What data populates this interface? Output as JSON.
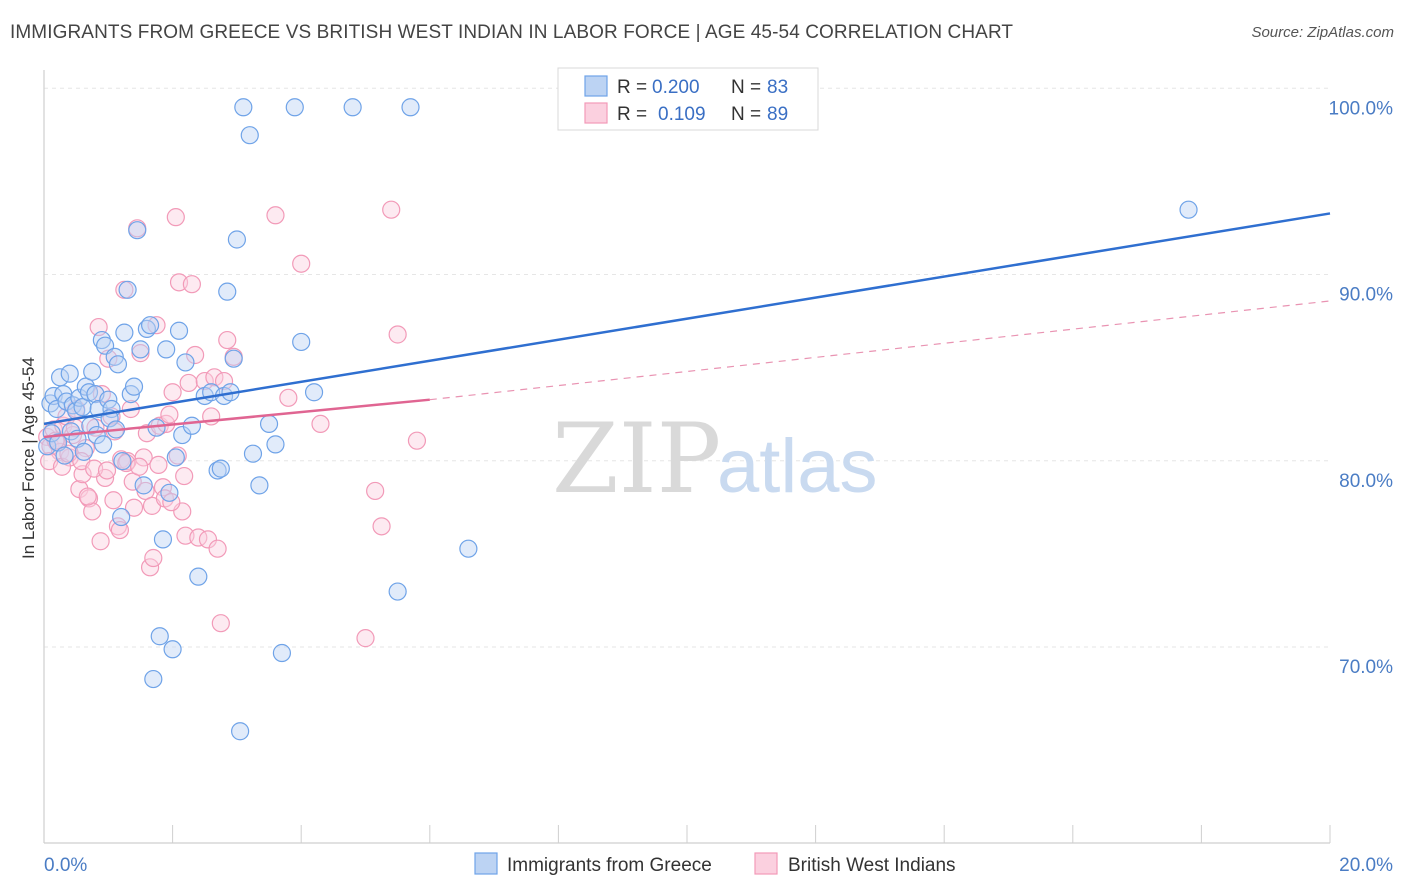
{
  "title": "IMMIGRANTS FROM GREECE VS BRITISH WEST INDIAN IN LABOR FORCE | AGE 45-54 CORRELATION CHART",
  "source": "Source: ZipAtlas.com",
  "watermark": {
    "zip": "ZIP",
    "atlas": "atlas"
  },
  "colors": {
    "blue": "#6fa3e8",
    "blue_line": "#2f6fd0",
    "pink": "#f29ab8",
    "pink_line": "#e06592"
  },
  "legend": {
    "rows": [
      {
        "r_label": "R =",
        "r_value": "0.200",
        "n_label": "N =",
        "n_value": "83"
      },
      {
        "r_label": "R =",
        "r_value": "0.109",
        "n_label": "N =",
        "n_value": "89"
      }
    ]
  },
  "chart_data": {
    "type": "scatter",
    "xlabel": "",
    "ylabel": "In Labor Force | Age 45-54",
    "xlim": [
      0,
      20
    ],
    "ylim": [
      60.5,
      102
    ],
    "x_tick_labels": [
      {
        "x": 0,
        "label": "0.0%"
      },
      {
        "x": 20,
        "label": "20.0%"
      }
    ],
    "y_tick_labels": [
      {
        "y": 100,
        "label": "100.0%"
      },
      {
        "y": 90,
        "label": "90.0%"
      },
      {
        "y": 80,
        "label": "80.0%"
      },
      {
        "y": 70,
        "label": "70.0%"
      }
    ],
    "grid": true,
    "legend_position": "top-center",
    "series": [
      {
        "name": "Immigrants from Greece",
        "color": "#6fa3e8",
        "trend": {
          "x": [
            0,
            20
          ],
          "y": [
            83.0,
            94.3
          ],
          "style": "solid"
        },
        "points": [
          [
            0.1,
            84.1
          ],
          [
            0.15,
            84.5
          ],
          [
            0.2,
            83.8
          ],
          [
            0.25,
            85.5
          ],
          [
            0.3,
            84.6
          ],
          [
            0.35,
            84.2
          ],
          [
            0.4,
            85.7
          ],
          [
            0.45,
            84.0
          ],
          [
            0.5,
            83.7
          ],
          [
            0.55,
            84.4
          ],
          [
            0.6,
            83.9
          ],
          [
            0.65,
            85.0
          ],
          [
            0.7,
            84.7
          ],
          [
            0.75,
            85.8
          ],
          [
            0.8,
            84.6
          ],
          [
            0.85,
            83.8
          ],
          [
            0.9,
            87.5
          ],
          [
            0.95,
            87.2
          ],
          [
            1.0,
            84.3
          ],
          [
            1.05,
            83.8
          ],
          [
            1.1,
            86.6
          ],
          [
            1.15,
            86.2
          ],
          [
            1.2,
            78.0
          ],
          [
            1.25,
            87.9
          ],
          [
            1.3,
            90.2
          ],
          [
            1.35,
            84.6
          ],
          [
            1.4,
            85.0
          ],
          [
            1.45,
            93.4
          ],
          [
            1.5,
            87.0
          ],
          [
            1.55,
            79.7
          ],
          [
            1.6,
            88.1
          ],
          [
            1.65,
            88.3
          ],
          [
            1.7,
            69.3
          ],
          [
            1.75,
            82.8
          ],
          [
            1.8,
            71.6
          ],
          [
            1.85,
            76.8
          ],
          [
            1.9,
            87.0
          ],
          [
            1.95,
            79.3
          ],
          [
            2.0,
            70.9
          ],
          [
            2.05,
            81.2
          ],
          [
            2.1,
            88.0
          ],
          [
            2.15,
            82.4
          ],
          [
            2.2,
            86.3
          ],
          [
            2.3,
            82.9
          ],
          [
            2.4,
            74.8
          ],
          [
            2.5,
            84.5
          ],
          [
            2.6,
            84.7
          ],
          [
            2.7,
            80.5
          ],
          [
            2.75,
            80.6
          ],
          [
            2.8,
            84.5
          ],
          [
            2.85,
            90.1
          ],
          [
            2.9,
            84.7
          ],
          [
            2.95,
            86.5
          ],
          [
            3.0,
            92.9
          ],
          [
            3.05,
            66.5
          ],
          [
            3.1,
            100.0
          ],
          [
            3.2,
            98.5
          ],
          [
            3.25,
            81.4
          ],
          [
            3.35,
            79.7
          ],
          [
            3.5,
            83.0
          ],
          [
            3.6,
            81.9
          ],
          [
            3.7,
            70.7
          ],
          [
            3.9,
            100.0
          ],
          [
            4.0,
            87.4
          ],
          [
            4.2,
            84.7
          ],
          [
            4.8,
            100.0
          ],
          [
            5.5,
            74.0
          ],
          [
            5.7,
            100.0
          ],
          [
            6.6,
            76.3
          ],
          [
            17.8,
            94.5
          ],
          [
            0.05,
            81.8
          ],
          [
            0.12,
            82.5
          ],
          [
            0.22,
            82.0
          ],
          [
            0.32,
            81.3
          ],
          [
            0.42,
            82.6
          ],
          [
            0.52,
            82.2
          ],
          [
            0.62,
            81.5
          ],
          [
            0.72,
            82.9
          ],
          [
            0.82,
            82.4
          ],
          [
            0.92,
            81.9
          ],
          [
            1.02,
            83.3
          ],
          [
            1.12,
            82.7
          ],
          [
            1.22,
            81.0
          ]
        ]
      },
      {
        "name": "British West Indians",
        "color": "#f29ab8",
        "trend": {
          "x": [
            0,
            6
          ],
          "y": [
            82.3,
            84.3
          ],
          "style": "solid",
          "extended": {
            "x": [
              6,
              20
            ],
            "y": [
              84.3,
              89.6
            ],
            "style": "dashed"
          }
        },
        "points": [
          [
            0.05,
            82.3
          ],
          [
            0.1,
            81.8
          ],
          [
            0.15,
            82.7
          ],
          [
            0.2,
            82.0
          ],
          [
            0.25,
            81.5
          ],
          [
            0.3,
            82.9
          ],
          [
            0.35,
            83.4
          ],
          [
            0.4,
            81.2
          ],
          [
            0.45,
            82.4
          ],
          [
            0.5,
            83.8
          ],
          [
            0.55,
            79.5
          ],
          [
            0.6,
            80.3
          ],
          [
            0.65,
            81.7
          ],
          [
            0.7,
            79.0
          ],
          [
            0.75,
            78.3
          ],
          [
            0.8,
            82.8
          ],
          [
            0.85,
            88.2
          ],
          [
            0.9,
            84.6
          ],
          [
            0.95,
            80.1
          ],
          [
            1.0,
            86.5
          ],
          [
            1.05,
            83.4
          ],
          [
            1.1,
            82.6
          ],
          [
            1.15,
            77.5
          ],
          [
            1.2,
            81.1
          ],
          [
            1.25,
            90.2
          ],
          [
            1.3,
            81.0
          ],
          [
            1.35,
            83.8
          ],
          [
            1.4,
            78.5
          ],
          [
            1.45,
            93.5
          ],
          [
            1.5,
            86.8
          ],
          [
            1.55,
            81.2
          ],
          [
            1.6,
            82.5
          ],
          [
            1.65,
            75.3
          ],
          [
            1.7,
            75.8
          ],
          [
            1.75,
            88.3
          ],
          [
            1.8,
            82.9
          ],
          [
            1.85,
            79.6
          ],
          [
            1.9,
            83.0
          ],
          [
            1.95,
            83.5
          ],
          [
            2.0,
            84.7
          ],
          [
            2.05,
            94.1
          ],
          [
            2.1,
            90.6
          ],
          [
            2.15,
            78.3
          ],
          [
            2.2,
            77.0
          ],
          [
            2.25,
            85.2
          ],
          [
            2.3,
            90.5
          ],
          [
            2.35,
            86.7
          ],
          [
            2.4,
            76.9
          ],
          [
            2.5,
            85.3
          ],
          [
            2.55,
            76.8
          ],
          [
            2.6,
            83.4
          ],
          [
            2.65,
            85.5
          ],
          [
            2.7,
            76.3
          ],
          [
            2.75,
            72.3
          ],
          [
            2.8,
            85.3
          ],
          [
            2.85,
            87.5
          ],
          [
            2.95,
            86.6
          ],
          [
            3.6,
            94.2
          ],
          [
            3.8,
            84.4
          ],
          [
            4.0,
            91.6
          ],
          [
            4.3,
            83.0
          ],
          [
            5.0,
            71.5
          ],
          [
            5.15,
            79.4
          ],
          [
            5.25,
            77.5
          ],
          [
            5.4,
            94.5
          ],
          [
            5.5,
            87.8
          ],
          [
            5.8,
            82.1
          ],
          [
            0.08,
            81.0
          ],
          [
            0.18,
            82.1
          ],
          [
            0.28,
            80.7
          ],
          [
            0.38,
            81.4
          ],
          [
            0.48,
            82.8
          ],
          [
            0.58,
            81.0
          ],
          [
            0.68,
            79.1
          ],
          [
            0.78,
            80.6
          ],
          [
            0.88,
            76.7
          ],
          [
            0.98,
            80.5
          ],
          [
            1.08,
            78.9
          ],
          [
            1.18,
            77.3
          ],
          [
            1.28,
            80.9
          ],
          [
            1.38,
            79.9
          ],
          [
            1.48,
            80.7
          ],
          [
            1.58,
            79.4
          ],
          [
            1.68,
            78.6
          ],
          [
            1.78,
            80.8
          ],
          [
            1.88,
            79.0
          ],
          [
            1.98,
            78.8
          ],
          [
            2.08,
            81.3
          ],
          [
            2.18,
            80.2
          ]
        ]
      }
    ]
  }
}
